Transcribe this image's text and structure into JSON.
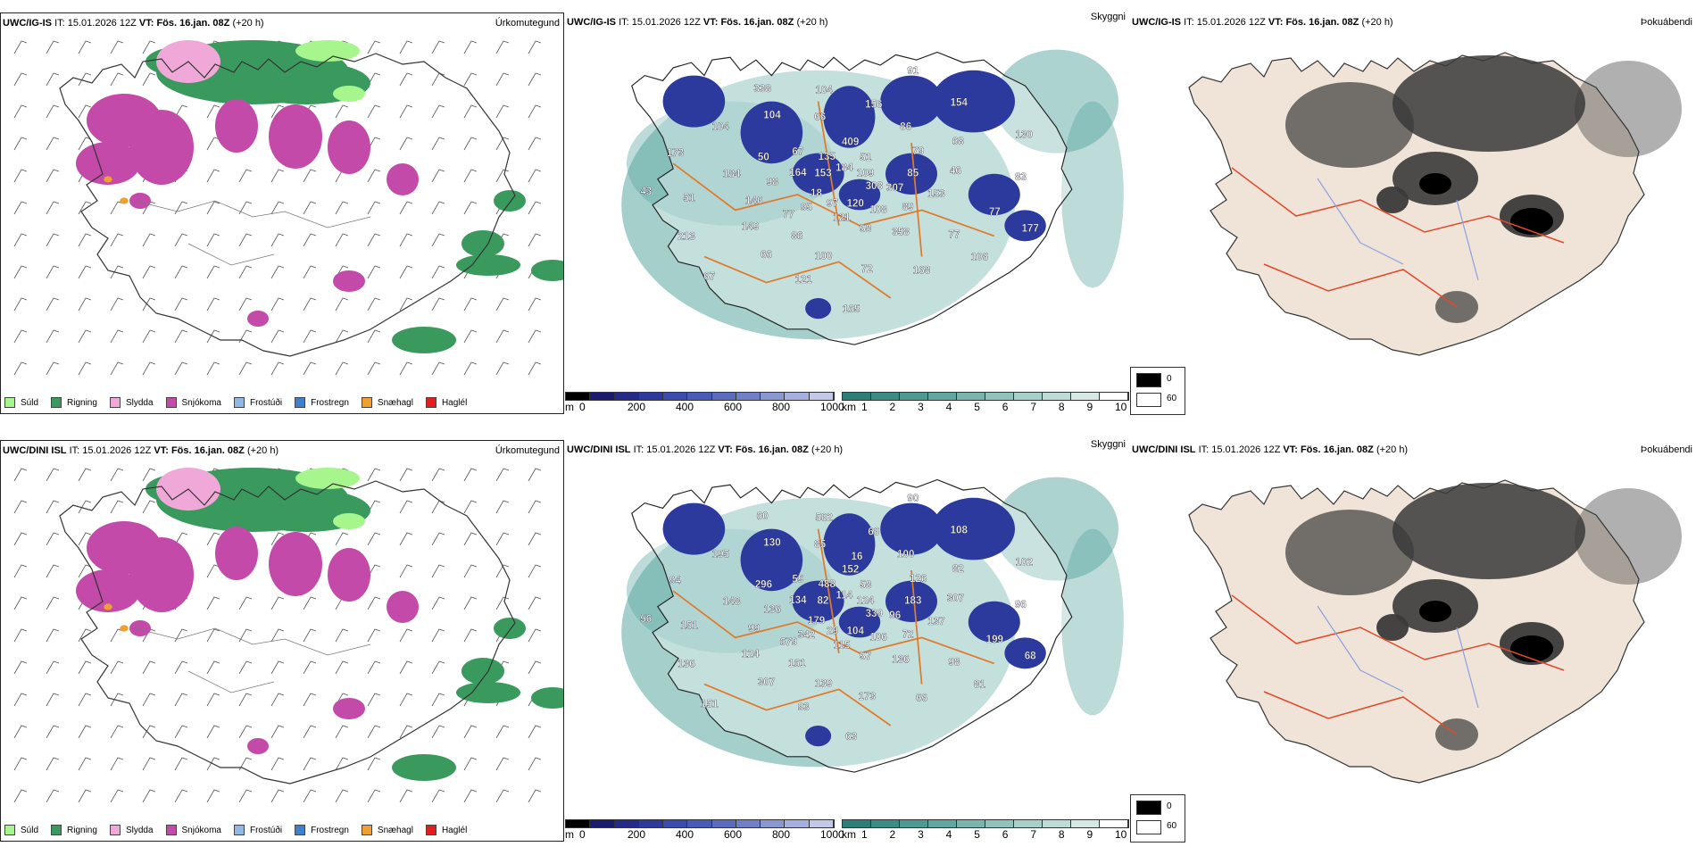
{
  "rows": [
    {
      "model": "UWC/IG-IS",
      "it_label": "IT:",
      "it_value": "15.01.2026 12Z",
      "vt_label": "VT:",
      "vt_value": "Fös. 16.jan. 08Z",
      "lead": "(+20 h)",
      "panel_titles": [
        "Úrkomutegund",
        "Skyggni",
        "Þokuábendi"
      ],
      "labels": [
        "308",
        "95",
        "409",
        "358",
        "184",
        "68",
        "121",
        "338",
        "177",
        "18",
        "51",
        "58",
        "50",
        "46",
        "66",
        "104",
        "106",
        "43",
        "109",
        "121",
        "67",
        "153",
        "149",
        "156",
        "168",
        "173",
        "130",
        "97",
        "135",
        "89",
        "146",
        "86",
        "72",
        "104",
        "83",
        "67",
        "184",
        "108",
        "98",
        "79",
        "100",
        "104",
        "77",
        "213",
        "91",
        "120",
        "164",
        "85",
        "86",
        "66",
        "77",
        "51",
        "154",
        "165",
        "153",
        "307",
        "77"
      ]
    },
    {
      "model": "UWC/DINI ISL",
      "it_label": "IT:",
      "it_value": "15.01.2026 12Z",
      "vt_label": "VT:",
      "vt_value": "Fös. 16.jan. 08Z",
      "lead": "(+20 h)",
      "panel_titles": [
        "Úrkomutegund",
        "Skyggni",
        "Þokuábendi"
      ],
      "labels": [
        "339",
        "342",
        "152",
        "136",
        "148",
        "82",
        "93",
        "60",
        "68",
        "179",
        "58",
        "57",
        "296",
        "307",
        "307",
        "562",
        "81",
        "56",
        "124",
        "115",
        "59",
        "137",
        "124",
        "66",
        "66",
        "94",
        "102",
        "29",
        "488",
        "72",
        "99",
        "100",
        "173",
        "195",
        "96",
        "151",
        "114",
        "106",
        "136",
        "126",
        "139",
        "130",
        "199",
        "136",
        "90",
        "104",
        "134",
        "183",
        "161",
        "85",
        "98",
        "151",
        "108",
        "63",
        "82",
        "96",
        "679",
        "16"
      ]
    }
  ],
  "legend_precip": [
    {
      "label": "Súld",
      "color": "#a6f58d"
    },
    {
      "label": "Rigning",
      "color": "#3a9a5e"
    },
    {
      "label": "Slydda",
      "color": "#f0a8d8"
    },
    {
      "label": "Snjókoma",
      "color": "#c34aa8"
    },
    {
      "label": "Frostúði",
      "color": "#8fb8e8"
    },
    {
      "label": "Frostregn",
      "color": "#3f7fcf"
    },
    {
      "label": "Snæhagl",
      "color": "#f0a030"
    },
    {
      "label": "Haglél",
      "color": "#e02020"
    }
  ],
  "scale_m": {
    "unit": "m",
    "ticks": [
      "0",
      "200",
      "400",
      "600",
      "800",
      "1000"
    ],
    "colors": [
      "#000000",
      "#1a1a6e",
      "#242a8a",
      "#2c3a9e",
      "#3b4bb0",
      "#4a5ab8",
      "#5b6bc0",
      "#7080c8",
      "#8a98d2",
      "#a6b0de",
      "#c2c8e8"
    ]
  },
  "scale_km": {
    "unit": "km",
    "ticks": [
      "1",
      "2",
      "3",
      "4",
      "5",
      "6",
      "7",
      "8",
      "9",
      "10"
    ],
    "colors": [
      "#2a7f77",
      "#3a8d85",
      "#4e9a92",
      "#62a79f",
      "#78b5ad",
      "#8fc3bb",
      "#a6d0c9",
      "#bedcd7",
      "#d6e9e5",
      "#ffffff"
    ]
  },
  "fog_legend": [
    {
      "label": "0",
      "color": "#000000"
    },
    {
      "label": "60",
      "color": "#ffffff"
    }
  ]
}
